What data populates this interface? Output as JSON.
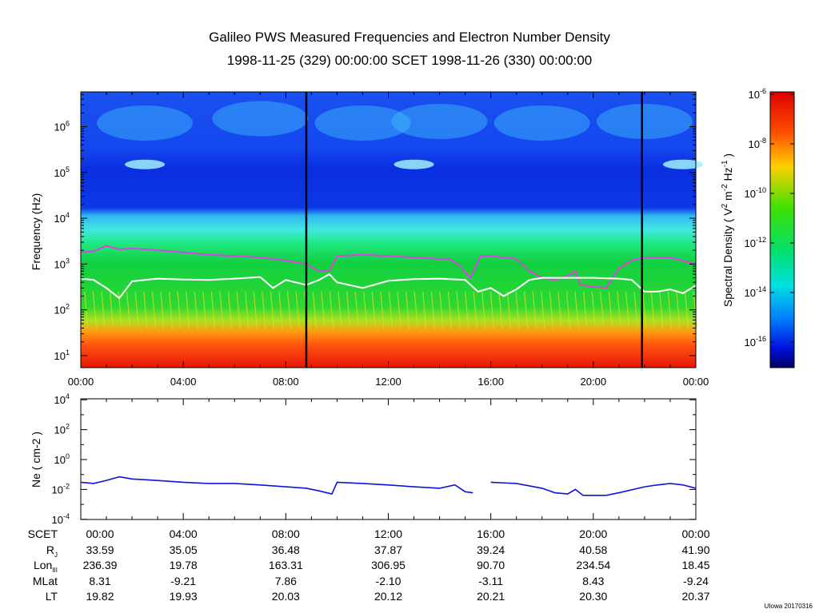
{
  "title": "Galileo PWS Measured Frequencies and Electron Number Density",
  "subtitle": "1998-11-25 (329) 00:00:00 SCET 1998-11-26 (330) 00:00:00",
  "credit": "UIowa 20170316",
  "colors": {
    "upper_line": "#e040e0",
    "lower_line": "#ffffff",
    "ne_line": "#1010e0",
    "event_line": "#000000"
  },
  "chart_data": [
    {
      "type": "heatmap",
      "title": "Frequency spectrogram",
      "ylabel": "Frequency (Hz)",
      "xlabel": "",
      "xlim_hours": [
        0,
        24
      ],
      "ylim": [
        5.5,
        5600000.0
      ],
      "yscale": "log",
      "xticks": [
        "00:00",
        "04:00",
        "08:00",
        "12:00",
        "16:00",
        "20:00",
        "00:00"
      ],
      "yticks": [
        {
          "exp": "1",
          "label": "10"
        },
        {
          "exp": "2",
          "label": "10"
        },
        {
          "exp": "3",
          "label": "10"
        },
        {
          "exp": "4",
          "label": "10"
        },
        {
          "exp": "5",
          "label": "10"
        },
        {
          "exp": "6",
          "label": "10"
        }
      ],
      "colorbar": {
        "label": "Spectral Density ( V2 m-2 Hz-1 )",
        "label_parts": [
          "Spectral Density ( V",
          "2",
          " m",
          "-2",
          " Hz",
          "-1",
          " )"
        ],
        "range": [
          1e-17,
          1e-06
        ],
        "ticks": [
          {
            "exp": "-6",
            "label": "10"
          },
          {
            "exp": "-8",
            "label": "10"
          },
          {
            "exp": "-10",
            "label": "10"
          },
          {
            "exp": "-12",
            "label": "10"
          },
          {
            "exp": "-14",
            "label": "10"
          },
          {
            "exp": "-16",
            "label": "10"
          }
        ]
      },
      "event_markers_hours": [
        8.8,
        21.9
      ],
      "series": [
        {
          "name": "upper frequency line (magenta)",
          "x": [
            0,
            0.5,
            1,
            1.5,
            2,
            3,
            4,
            5,
            6,
            7,
            8,
            8.8,
            9.3,
            9.7,
            10,
            11,
            12,
            13,
            14,
            14.4,
            14.8,
            15.2,
            15.6,
            16,
            17,
            17.5,
            18,
            18.5,
            19,
            19.3,
            19.5,
            20,
            20.5,
            21,
            21.5,
            22,
            23,
            24
          ],
          "y": [
            1800,
            1900,
            2500,
            2100,
            2200,
            2000,
            1800,
            1600,
            1500,
            1400,
            1200,
            1000,
            700,
            700,
            1500,
            1600,
            1500,
            1400,
            1300,
            1300,
            900,
            500,
            1500,
            1500,
            1300,
            700,
            500,
            450,
            550,
            700,
            350,
            320,
            300,
            800,
            1200,
            1400,
            1400,
            1000
          ]
        },
        {
          "name": "lower frequency line (white)",
          "x": [
            0,
            0.5,
            1,
            1.5,
            2,
            3,
            4,
            5,
            6,
            7,
            7.5,
            8,
            8.8,
            9.3,
            9.7,
            10,
            11,
            12,
            13,
            14,
            15,
            15.5,
            16,
            16.5,
            17,
            17.5,
            18,
            19,
            20,
            21,
            21.5,
            22,
            22.5,
            23,
            23.5,
            24
          ],
          "y": [
            480,
            450,
            300,
            180,
            420,
            480,
            460,
            450,
            480,
            520,
            300,
            450,
            350,
            450,
            600,
            400,
            300,
            430,
            470,
            480,
            450,
            250,
            300,
            200,
            280,
            450,
            500,
            500,
            500,
            480,
            450,
            250,
            250,
            280,
            230,
            340
          ]
        }
      ]
    },
    {
      "type": "line",
      "ylabel": "Ne ( cm-2 )",
      "ylabel_parts": [
        "N",
        "e",
        " ( cm",
        "-2",
        " )"
      ],
      "yscale": "log",
      "ylim": [
        0.0001,
        10000.0
      ],
      "yticks": [
        {
          "exp": "4",
          "label": "10"
        },
        {
          "exp": "2",
          "label": "10"
        },
        {
          "exp": "0",
          "label": "10"
        },
        {
          "exp": "-2",
          "label": "10"
        },
        {
          "exp": "-4",
          "label": "10"
        }
      ],
      "series": [
        {
          "name": "Ne",
          "x": [
            0,
            0.5,
            1,
            1.5,
            2,
            3,
            4,
            5,
            6,
            7,
            8,
            8.8,
            9.3,
            9.6,
            9.8,
            10,
            11,
            12,
            13,
            14,
            14.6,
            15,
            15.3,
            15.5,
            16,
            17,
            18,
            18.5,
            19,
            19.3,
            19.6,
            20,
            20.5,
            21,
            22,
            22.5,
            23,
            23.5,
            24
          ],
          "y": [
            0.03,
            0.025,
            0.04,
            0.07,
            0.05,
            0.04,
            0.03,
            0.025,
            0.025,
            0.02,
            0.015,
            0.012,
            0.008,
            0.006,
            0.005,
            0.03,
            0.025,
            0.02,
            0.015,
            0.012,
            0.02,
            0.007,
            0.006,
            null,
            0.03,
            0.025,
            0.012,
            0.006,
            0.005,
            0.01,
            0.004,
            0.004,
            0.004,
            0.006,
            0.015,
            0.02,
            0.025,
            0.02,
            0.012
          ]
        }
      ]
    }
  ],
  "ephemeris": {
    "rows": [
      {
        "label": "SCET",
        "sub": "",
        "values": [
          "00:00",
          "04:00",
          "08:00",
          "12:00",
          "16:00",
          "20:00",
          "00:00"
        ]
      },
      {
        "label": "R",
        "sub": "J",
        "values": [
          "33.59",
          "35.05",
          "36.48",
          "37.87",
          "39.24",
          "40.58",
          "41.90"
        ]
      },
      {
        "label": "Lon",
        "sub": "III",
        "values": [
          "236.39",
          "19.78",
          "163.31",
          "306.95",
          "90.70",
          "234.54",
          "18.45"
        ]
      },
      {
        "label": "MLat",
        "sub": "",
        "values": [
          "8.31",
          "-9.21",
          "7.86",
          "-2.10",
          "-3.11",
          "8.43",
          "-9.24"
        ]
      },
      {
        "label": "LT",
        "sub": "",
        "values": [
          "19.82",
          "19.93",
          "20.03",
          "20.12",
          "20.21",
          "20.30",
          "20.37"
        ]
      }
    ]
  }
}
